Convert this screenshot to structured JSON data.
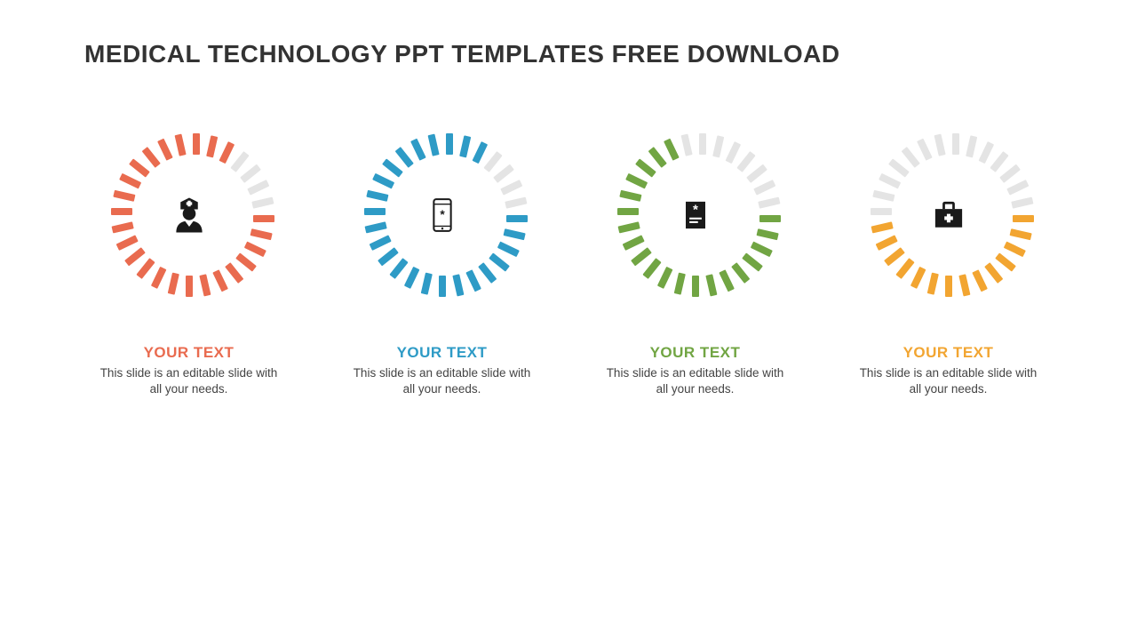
{
  "title": "MEDICAL TECHNOLOGY PPT TEMPLATES FREE DOWNLOAD",
  "dial": {
    "tick_count": 28,
    "tick_width": 8,
    "tick_height": 24,
    "tick_radius": 68,
    "inactive_color": "#e4e4e4"
  },
  "cards": [
    {
      "heading": "YOUR TEXT",
      "desc": "This slide is an editable slide with all your needs.",
      "color": "#e96b4f",
      "active_ticks": 24,
      "icon": "nurse"
    },
    {
      "heading": "YOUR TEXT",
      "desc": "This slide is an editable slide with all your needs.",
      "color": "#2e9bc6",
      "active_ticks": 24,
      "icon": "phone"
    },
    {
      "heading": "YOUR TEXT",
      "desc": "This slide is an editable slide with all your needs.",
      "color": "#71a543",
      "active_ticks": 20,
      "icon": "clipboard"
    },
    {
      "heading": "YOUR TEXT",
      "desc": "This slide is an editable slide with all your needs.",
      "color": "#f2a531",
      "active_ticks": 14,
      "icon": "briefcase"
    }
  ]
}
